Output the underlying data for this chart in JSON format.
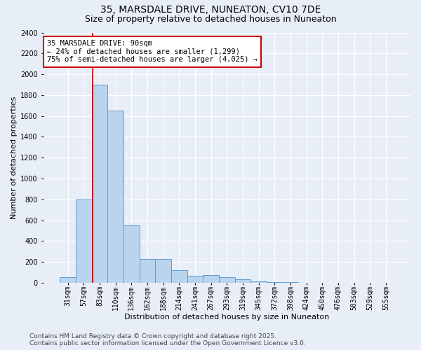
{
  "title": "35, MARSDALE DRIVE, NUNEATON, CV10 7DE",
  "subtitle": "Size of property relative to detached houses in Nuneaton",
  "xlabel": "Distribution of detached houses by size in Nuneaton",
  "ylabel": "Number of detached properties",
  "footer1": "Contains HM Land Registry data © Crown copyright and database right 2025.",
  "footer2": "Contains public sector information licensed under the Open Government Licence v3.0.",
  "annotation_line1": "35 MARSDALE DRIVE: 90sqm",
  "annotation_line2": "← 24% of detached houses are smaller (1,299)",
  "annotation_line3": "75% of semi-detached houses are larger (4,025) →",
  "categories": [
    "31sqm",
    "57sqm",
    "83sqm",
    "110sqm",
    "136sqm",
    "162sqm",
    "188sqm",
    "214sqm",
    "241sqm",
    "267sqm",
    "293sqm",
    "319sqm",
    "345sqm",
    "372sqm",
    "398sqm",
    "424sqm",
    "450sqm",
    "476sqm",
    "503sqm",
    "529sqm",
    "555sqm"
  ],
  "values": [
    50,
    800,
    1900,
    1650,
    550,
    230,
    230,
    120,
    65,
    70,
    50,
    30,
    12,
    5,
    3,
    2,
    1,
    1,
    1,
    0,
    0
  ],
  "bar_color": "#bad4ed",
  "bar_edge_color": "#5b9bd5",
  "redline_x": 1.575,
  "ylim": [
    0,
    2400
  ],
  "yticks": [
    0,
    200,
    400,
    600,
    800,
    1000,
    1200,
    1400,
    1600,
    1800,
    2000,
    2200,
    2400
  ],
  "background_color": "#e8eef8",
  "grid_color": "#ffffff",
  "annotation_box_color": "#ffffff",
  "annotation_box_edge": "#cc0000",
  "redline_color": "#cc0000",
  "title_fontsize": 10,
  "subtitle_fontsize": 9,
  "axis_label_fontsize": 8,
  "tick_fontsize": 7,
  "annotation_fontsize": 7.5,
  "footer_fontsize": 6.5
}
